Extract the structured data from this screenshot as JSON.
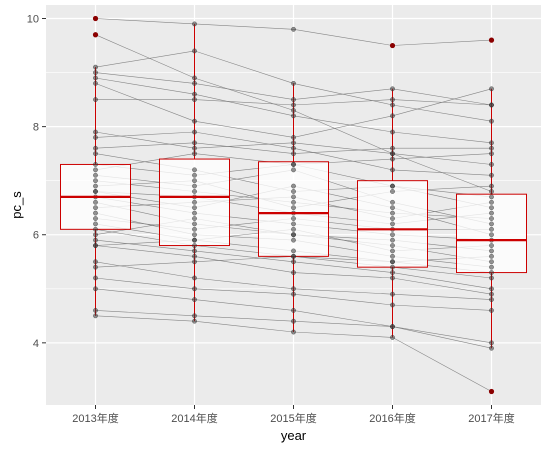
{
  "chart_data": {
    "type": "boxplot",
    "title": "",
    "xlabel": "year",
    "ylabel": "pc_s",
    "categories": [
      "2013年度",
      "2014年度",
      "2015年度",
      "2016年度",
      "2017年度"
    ],
    "ylim": [
      2.85,
      10.25
    ],
    "yticks": [
      4,
      6,
      8,
      10
    ],
    "grid": true,
    "legend": "none",
    "colors": {
      "panel": "#ebebeb",
      "grid": "#ffffff",
      "box": "#cc0000",
      "median": "#cc0000",
      "outlier": "#8b0000",
      "line": "#7a7a7a",
      "point": "#3a3a3a"
    },
    "boxes": [
      {
        "category": "2013年度",
        "lower_whisker": 4.5,
        "q1": 6.1,
        "median": 6.7,
        "q3": 7.3,
        "upper_whisker": 9.1,
        "outliers": [
          9.7,
          10.0
        ]
      },
      {
        "category": "2014年度",
        "lower_whisker": 4.4,
        "q1": 5.8,
        "median": 6.7,
        "q3": 7.4,
        "upper_whisker": 9.9,
        "outliers": []
      },
      {
        "category": "2015年度",
        "lower_whisker": 4.2,
        "q1": 5.6,
        "median": 6.4,
        "q3": 7.35,
        "upper_whisker": 8.8,
        "outliers": []
      },
      {
        "category": "2016年度",
        "lower_whisker": 4.1,
        "q1": 5.4,
        "median": 6.1,
        "q3": 7.0,
        "upper_whisker": 8.7,
        "outliers": [
          9.5
        ]
      },
      {
        "category": "2017年度",
        "lower_whisker": 3.9,
        "q1": 5.3,
        "median": 5.9,
        "q3": 6.75,
        "upper_whisker": 8.7,
        "outliers": [
          3.1,
          9.6
        ]
      }
    ],
    "series": [
      {
        "values": [
          10.0,
          9.9,
          9.8,
          9.5,
          9.6
        ]
      },
      {
        "values": [
          9.7,
          8.9,
          8.3,
          7.5,
          6.8
        ]
      },
      {
        "values": [
          9.1,
          9.4,
          8.8,
          8.4,
          8.1
        ]
      },
      {
        "values": [
          9.0,
          8.8,
          8.5,
          8.7,
          8.4
        ]
      },
      {
        "values": [
          8.9,
          8.6,
          8.2,
          7.9,
          7.7
        ]
      },
      {
        "values": [
          8.8,
          8.1,
          7.8,
          8.2,
          8.7
        ]
      },
      {
        "values": [
          8.5,
          8.5,
          8.4,
          8.5,
          8.4
        ]
      },
      {
        "values": [
          7.9,
          7.6,
          7.7,
          7.5,
          7.3
        ]
      },
      {
        "values": [
          7.8,
          7.9,
          7.6,
          7.2,
          7.1
        ]
      },
      {
        "values": [
          7.6,
          7.7,
          7.5,
          7.6,
          7.6
        ]
      },
      {
        "values": [
          7.5,
          7.2,
          6.8,
          6.9,
          6.5
        ]
      },
      {
        "values": [
          7.3,
          7.1,
          7.3,
          7.4,
          7.5
        ]
      },
      {
        "values": [
          7.2,
          7.5,
          7.3,
          6.9,
          6.7
        ]
      },
      {
        "values": [
          7.1,
          6.9,
          7.2,
          6.6,
          6.2
        ]
      },
      {
        "values": [
          7.0,
          6.8,
          6.6,
          6.4,
          6.3
        ]
      },
      {
        "values": [
          6.9,
          7.0,
          6.5,
          6.8,
          6.9
        ]
      },
      {
        "values": [
          6.8,
          6.5,
          6.9,
          6.5,
          6.0
        ]
      },
      {
        "values": [
          6.8,
          6.7,
          6.4,
          6.2,
          6.4
        ]
      },
      {
        "values": [
          6.7,
          6.4,
          6.2,
          6.0,
          5.9
        ]
      },
      {
        "values": [
          6.6,
          6.2,
          6.0,
          5.8,
          5.5
        ]
      },
      {
        "values": [
          6.5,
          6.6,
          6.7,
          6.3,
          6.6
        ]
      },
      {
        "values": [
          6.4,
          6.0,
          5.9,
          5.6,
          5.4
        ]
      },
      {
        "values": [
          6.3,
          6.1,
          6.3,
          6.1,
          6.1
        ]
      },
      {
        "values": [
          6.2,
          5.9,
          5.7,
          5.5,
          5.3
        ]
      },
      {
        "values": [
          6.1,
          5.8,
          5.6,
          5.4,
          5.2
        ]
      },
      {
        "values": [
          6.0,
          6.3,
          6.0,
          5.9,
          5.7
        ]
      },
      {
        "values": [
          5.9,
          5.7,
          5.5,
          5.3,
          5.0
        ]
      },
      {
        "values": [
          5.8,
          5.9,
          6.1,
          5.7,
          5.8
        ]
      },
      {
        "values": [
          5.8,
          5.6,
          5.3,
          5.2,
          4.9
        ]
      },
      {
        "values": [
          5.5,
          5.2,
          5.0,
          4.9,
          4.8
        ]
      },
      {
        "values": [
          5.4,
          5.5,
          5.6,
          5.5,
          5.6
        ]
      },
      {
        "values": [
          5.2,
          5.0,
          4.9,
          4.7,
          4.6
        ]
      },
      {
        "values": [
          5.0,
          4.8,
          4.6,
          4.3,
          4.0
        ]
      },
      {
        "values": [
          4.6,
          4.5,
          4.4,
          4.3,
          3.9
        ]
      },
      {
        "values": [
          4.5,
          4.4,
          4.2,
          4.1,
          3.1
        ]
      }
    ]
  }
}
